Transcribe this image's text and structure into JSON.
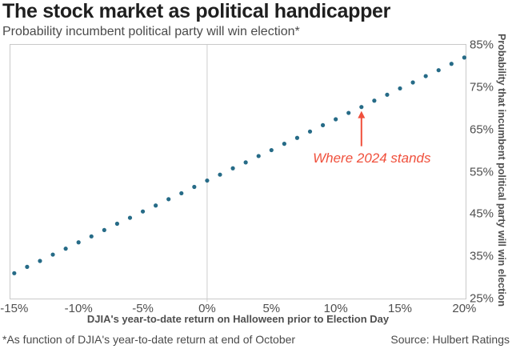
{
  "header": {
    "title": "The stock market as political handicapper",
    "subtitle": "Probability incumbent political party will win election*"
  },
  "chart_data": {
    "type": "scatter",
    "title": "The stock market as political handicapper",
    "subtitle": "Probability incumbent political party will win election*",
    "xlabel": "DJIA's year-to-date return on Halloween prior to Election Day",
    "ylabel": "Probability that incumbent political party will win election",
    "xlim": [
      -15.3,
      20.1
    ],
    "ylim": [
      25,
      85
    ],
    "grid_x_value": 0,
    "x": [
      -15,
      -14,
      -13,
      -12,
      -11,
      -10,
      -9,
      -8,
      -7,
      -6,
      -5,
      -4,
      -3,
      -2,
      -1,
      0,
      1,
      2,
      3,
      4,
      5,
      6,
      7,
      8,
      9,
      10,
      11,
      12,
      13,
      14,
      15,
      16,
      17,
      18,
      19,
      20
    ],
    "y": [
      31.0,
      32.5,
      33.9,
      35.4,
      36.8,
      38.3,
      39.7,
      41.2,
      42.7,
      44.1,
      45.6,
      47.0,
      48.5,
      49.9,
      51.4,
      52.9,
      54.3,
      55.8,
      57.2,
      58.7,
      60.1,
      61.6,
      63.0,
      64.5,
      66.0,
      67.4,
      68.9,
      70.3,
      71.8,
      73.2,
      74.7,
      76.1,
      77.6,
      79.0,
      80.5,
      82.0
    ],
    "x_ticks": [
      {
        "value": -15,
        "label": "-15%"
      },
      {
        "value": -10,
        "label": "-10%"
      },
      {
        "value": -5,
        "label": "-5%"
      },
      {
        "value": 0,
        "label": "0%"
      },
      {
        "value": 5,
        "label": "5%"
      },
      {
        "value": 10,
        "label": "10%"
      },
      {
        "value": 15,
        "label": "15%"
      },
      {
        "value": 20,
        "label": "20%"
      }
    ],
    "y_ticks": [
      {
        "value": 85,
        "label": "85%"
      },
      {
        "value": 75,
        "label": "75%"
      },
      {
        "value": 65,
        "label": "65%"
      },
      {
        "value": 55,
        "label": "55%"
      },
      {
        "value": 45,
        "label": "45%"
      },
      {
        "value": 35,
        "label": "35%"
      },
      {
        "value": 25,
        "label": "25%"
      }
    ],
    "annotation": {
      "text": "Where 2024 stands",
      "x": 12,
      "y": 70.3
    },
    "colors": {
      "dot": "#266b87",
      "annotation": "#f0503c",
      "grid": "#cccccc",
      "border": "#c9c9c9",
      "title": "#1f1f1f",
      "text": "#4a4a4a"
    },
    "dot_radius": 2.6,
    "legend": "none",
    "grid": "vertical line at 0% only"
  },
  "footer": {
    "note": "*As function of DJIA's year-to-date return at end of October",
    "source": "Source: Hulbert Ratings"
  }
}
